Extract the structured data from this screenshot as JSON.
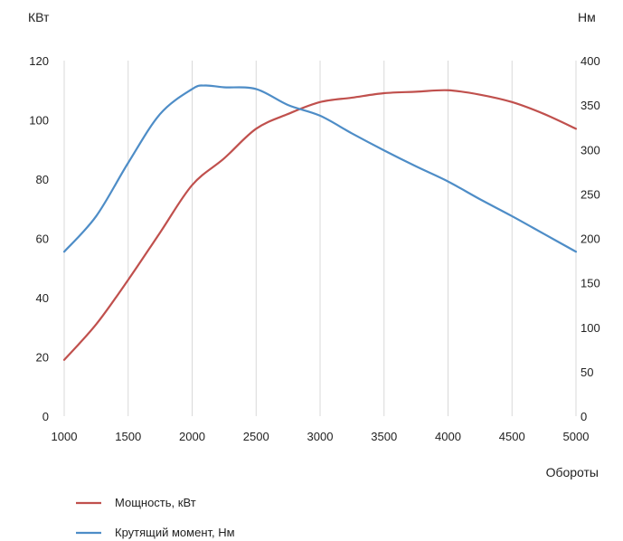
{
  "chart_data": {
    "type": "line",
    "title": "",
    "xlabel": "Обороты",
    "ylabel_left": "КВт",
    "ylabel_right": "Нм",
    "xlim": [
      1000,
      5000
    ],
    "ylim_left": [
      0,
      120
    ],
    "ylim_right": [
      0,
      400
    ],
    "x_ticks": [
      "1000",
      "1500",
      "2000",
      "2500",
      "3000",
      "3500",
      "4000",
      "4500",
      "5000"
    ],
    "y_left_ticks": [
      "0",
      "20",
      "40",
      "60",
      "80",
      "100",
      "120"
    ],
    "y_right_ticks": [
      "0",
      "50",
      "100",
      "150",
      "200",
      "250",
      "300",
      "350",
      "400"
    ],
    "grid": "vertical",
    "legend_position": "bottom-left",
    "series": [
      {
        "name": "Мощность, кВт",
        "axis": "left",
        "color": "#c0504d",
        "x": [
          1000,
          1250,
          1500,
          1750,
          2000,
          2250,
          2500,
          2750,
          3000,
          3250,
          3500,
          3750,
          4000,
          4250,
          4500,
          4750,
          5000
        ],
        "y": [
          19,
          31,
          46,
          62,
          78,
          87,
          97,
          102,
          106,
          107.5,
          109,
          109.5,
          110,
          108.5,
          106,
          102,
          97
        ]
      },
      {
        "name": "Крутящий момент, Нм",
        "axis": "right",
        "color": "#4e8dc7",
        "x": [
          1000,
          1250,
          1500,
          1750,
          2000,
          2100,
          2250,
          2500,
          2750,
          3000,
          3250,
          3500,
          3750,
          4000,
          4250,
          4500,
          4750,
          5000
        ],
        "y": [
          185,
          225,
          285,
          340,
          368,
          372,
          370,
          368,
          350,
          338,
          318,
          299,
          281,
          264,
          244,
          225,
          205,
          185
        ]
      }
    ]
  }
}
